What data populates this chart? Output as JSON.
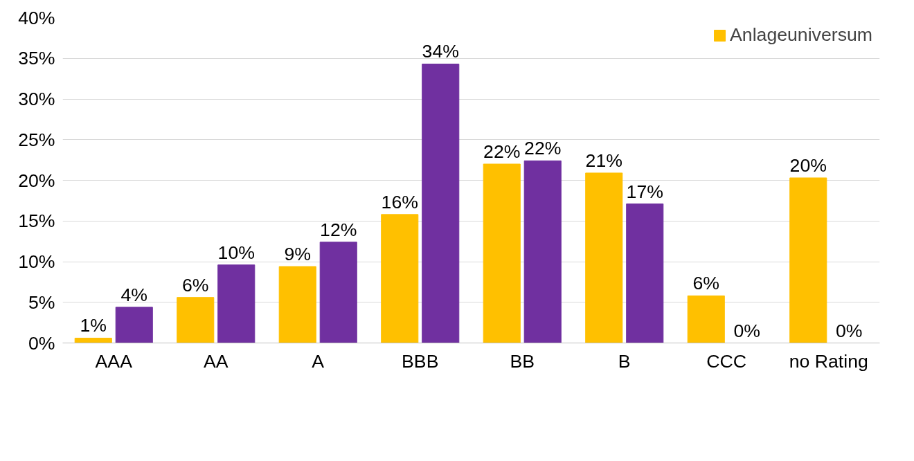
{
  "chart_data": {
    "type": "bar",
    "categories": [
      "AAA",
      "AA",
      "A",
      "BBB",
      "BB",
      "B",
      "CCC",
      "no Rating"
    ],
    "series": [
      {
        "name": "Anlageuniversum",
        "color": "#ffc000",
        "values": [
          0.6,
          5.6,
          9.4,
          15.8,
          22.0,
          20.9,
          5.8,
          20.3
        ],
        "value_labels": [
          "1%",
          "6%",
          "9%",
          "16%",
          "22%",
          "21%",
          "6%",
          "20%"
        ]
      },
      {
        "color": "#7030a0",
        "values": [
          4.4,
          9.6,
          12.4,
          34.3,
          22.4,
          17.1,
          0,
          0
        ],
        "value_labels": [
          "4%",
          "10%",
          "12%",
          "34%",
          "22%",
          "17%",
          "0%",
          "0%"
        ]
      }
    ],
    "ylim": [
      0,
      40
    ],
    "yticks": [
      {
        "value": 0,
        "label": "0%"
      },
      {
        "value": 5,
        "label": "5%"
      },
      {
        "value": 10,
        "label": "10%"
      },
      {
        "value": 15,
        "label": "15%"
      },
      {
        "value": 20,
        "label": "20%"
      },
      {
        "value": 25,
        "label": "25%"
      },
      {
        "value": 30,
        "label": "30%"
      },
      {
        "value": 35,
        "label": "35%"
      },
      {
        "value": 40,
        "label": "40%"
      }
    ],
    "grid": "y",
    "legend": "top right"
  }
}
